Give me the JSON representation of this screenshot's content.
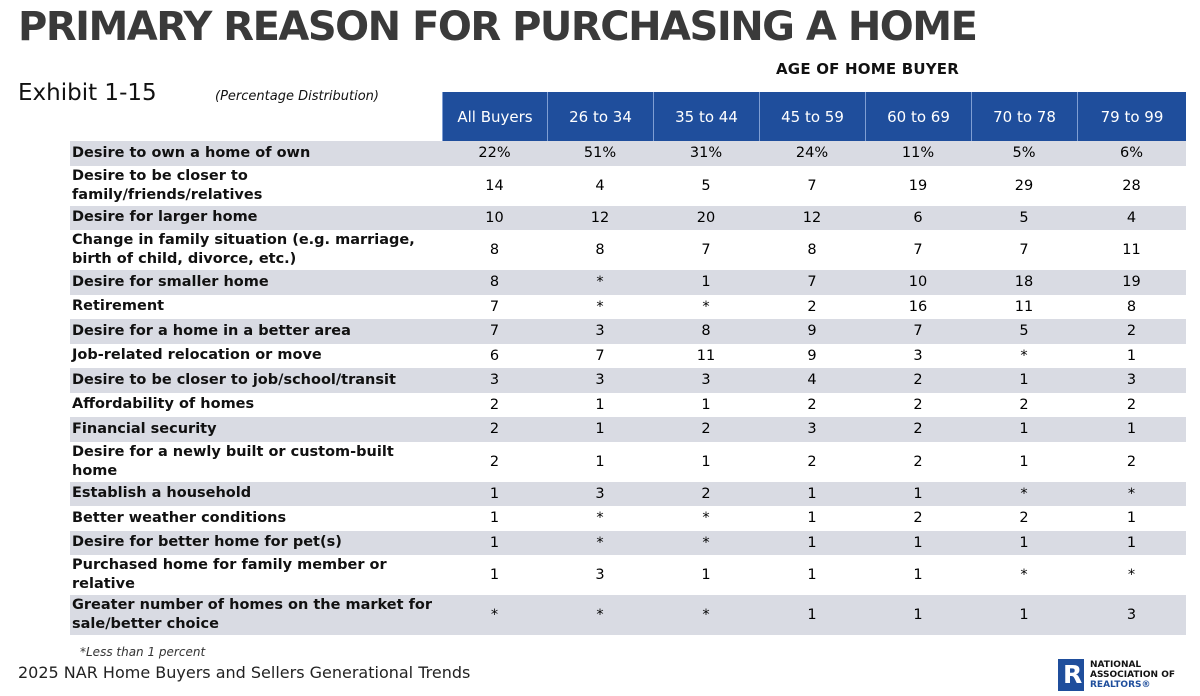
{
  "title": "PRIMARY REASON FOR PURCHASING A HOME",
  "exhibit": "Exhibit 1-15",
  "subtitle": "(Percentage Distribution)",
  "age_header": "AGE OF HOME BUYER",
  "columns": [
    "All Buyers",
    "26 to 34",
    "35 to 44",
    "45 to 59",
    "60 to 69",
    "70 to 78",
    "79 to 99"
  ],
  "rows": [
    {
      "label": "Desire to own a home of own",
      "values": [
        "22%",
        "51%",
        "31%",
        "24%",
        "11%",
        "5%",
        "6%"
      ]
    },
    {
      "label": "Desire to be closer to family/friends/relatives",
      "values": [
        "14",
        "4",
        "5",
        "7",
        "19",
        "29",
        "28"
      ]
    },
    {
      "label": "Desire for larger home",
      "values": [
        "10",
        "12",
        "20",
        "12",
        "6",
        "5",
        "4"
      ]
    },
    {
      "label": "Change in family situation (e.g. marriage, birth of child, divorce, etc.)",
      "values": [
        "8",
        "8",
        "7",
        "8",
        "7",
        "7",
        "11"
      ]
    },
    {
      "label": "Desire for smaller home",
      "values": [
        "8",
        "*",
        "1",
        "7",
        "10",
        "18",
        "19"
      ]
    },
    {
      "label": "Retirement",
      "values": [
        "7",
        "*",
        "*",
        "2",
        "16",
        "11",
        "8"
      ]
    },
    {
      "label": "Desire for a home in a better area",
      "values": [
        "7",
        "3",
        "8",
        "9",
        "7",
        "5",
        "2"
      ]
    },
    {
      "label": "Job-related relocation or move",
      "values": [
        "6",
        "7",
        "11",
        "9",
        "3",
        "*",
        "1"
      ]
    },
    {
      "label": "Desire to be closer to job/school/transit",
      "values": [
        "3",
        "3",
        "3",
        "4",
        "2",
        "1",
        "3"
      ]
    },
    {
      "label": "Affordability of homes",
      "values": [
        "2",
        "1",
        "1",
        "2",
        "2",
        "2",
        "2"
      ]
    },
    {
      "label": "Financial security",
      "values": [
        "2",
        "1",
        "2",
        "3",
        "2",
        "1",
        "1"
      ]
    },
    {
      "label": "Desire for a newly built or custom-built home",
      "values": [
        "2",
        "1",
        "1",
        "2",
        "2",
        "1",
        "2"
      ]
    },
    {
      "label": "Establish a household",
      "values": [
        "1",
        "3",
        "2",
        "1",
        "1",
        "*",
        "*"
      ]
    },
    {
      "label": "Better weather conditions",
      "values": [
        "1",
        "*",
        "*",
        "1",
        "2",
        "2",
        "1"
      ]
    },
    {
      "label": "Desire for better home for pet(s)",
      "values": [
        "1",
        "*",
        "*",
        "1",
        "1",
        "1",
        "1"
      ]
    },
    {
      "label": "Purchased home for family member or relative",
      "values": [
        "1",
        "3",
        "1",
        "1",
        "1",
        "*",
        "*"
      ]
    },
    {
      "label": "Greater number of homes on the market for sale/better choice",
      "values": [
        "*",
        "*",
        "*",
        "1",
        "1",
        "1",
        "3"
      ]
    }
  ],
  "footnote": "*Less than 1 percent",
  "source": "2025 NAR Home Buyers and Sellers Generational Trends",
  "logo": {
    "mark": "R",
    "line1": "NATIONAL",
    "line2": "ASSOCIATION OF",
    "line3": "REALTORS®"
  },
  "colors": {
    "header_bg": "#1f4e9c",
    "shaded_row": "#d9dbe3",
    "title": "#3a3a3a"
  }
}
